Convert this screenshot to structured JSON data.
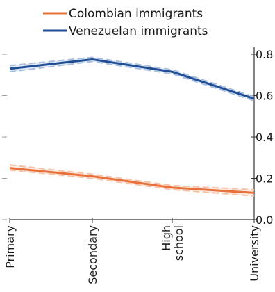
{
  "chart_data": {
    "type": "line",
    "categories": [
      "Primary",
      "Secondary",
      "High school",
      "University"
    ],
    "series": [
      {
        "name": "Colombian immigrants",
        "color": "#e8703a",
        "band_color": "#f6c3a8",
        "values": [
          0.25,
          0.21,
          0.155,
          0.13
        ],
        "ci_upper": [
          0.265,
          0.22,
          0.165,
          0.145
        ],
        "ci_lower": [
          0.24,
          0.2,
          0.145,
          0.115
        ]
      },
      {
        "name": "Venezuelan immigrants",
        "color": "#1f4e96",
        "band_color": "#a9bfdf",
        "values": [
          0.73,
          0.775,
          0.715,
          0.585
        ],
        "ci_upper": [
          0.745,
          0.785,
          0.725,
          0.595
        ],
        "ci_lower": [
          0.715,
          0.765,
          0.705,
          0.575
        ]
      }
    ],
    "yticks": [
      "0.0",
      "0.2",
      "0.4",
      "0.6",
      "0.8"
    ],
    "ylim": [
      0,
      0.8
    ],
    "y_axis_position": "right",
    "legend_position": "top",
    "grid": false
  }
}
